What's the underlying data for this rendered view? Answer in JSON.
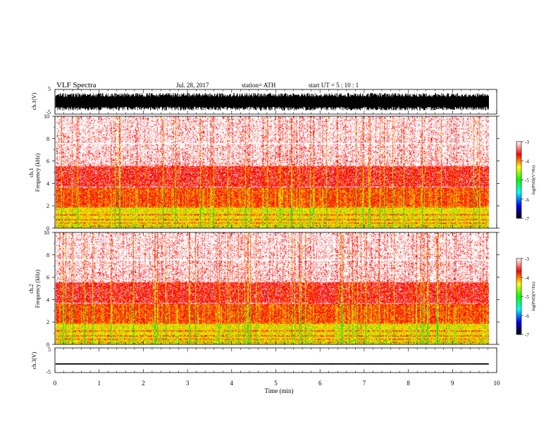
{
  "header": {
    "title": "VLF  Spectra",
    "date": "Jul.  28, 2017",
    "station": "station= ATH",
    "start_ut": "start  UT  =   5  : 10 : 1"
  },
  "chart_data": [
    {
      "id": "ch1-waveform",
      "type": "line",
      "ylabel": "ch.1(V)",
      "yticks": [
        "5",
        "-5"
      ],
      "ylim": [
        -5,
        5
      ],
      "xlim": [
        0,
        10
      ],
      "data_end_min": 9.82,
      "amplitude_range_V": [
        -3.6,
        3.6
      ]
    },
    {
      "id": "ch1-spectrogram",
      "type": "heatmap",
      "ylabel_line1": "ch.1",
      "ylabel_line2": "Frequency  (kHz)",
      "yticks": [
        "0",
        "2",
        "4",
        "6",
        "8",
        "10"
      ],
      "ylim_kHz": [
        0,
        10
      ],
      "xlim_min": [
        0,
        10
      ],
      "data_end_min": 9.82,
      "colorbar": {
        "label": "log(PSD)(V²/Hz)",
        "ticks": [
          "-3",
          "-4",
          "-5",
          "-6",
          "-7"
        ],
        "range": [
          -7,
          -3
        ],
        "colors": [
          "#000000",
          "#0000ff",
          "#00ffff",
          "#00ff00",
          "#ffff00",
          "#ff0000",
          "#ffffff"
        ]
      },
      "bands_kHz": [
        {
          "range": [
            0.0,
            0.5
          ],
          "level": "green-yellow"
        },
        {
          "range": [
            0.5,
            2.0
          ],
          "level": "yellow-green"
        },
        {
          "range": [
            2.0,
            3.7
          ],
          "level": "red-orange"
        },
        {
          "range": [
            3.7,
            5.6
          ],
          "level": "red"
        },
        {
          "range": [
            5.6,
            10.0
          ],
          "level": "red-white"
        }
      ],
      "horizontal_lines_kHz": [
        0.2,
        0.45,
        0.8,
        1.25,
        1.9,
        3.7,
        5.6,
        7.6
      ]
    },
    {
      "id": "ch2-spectrogram",
      "type": "heatmap",
      "ylabel_line1": "ch.2",
      "ylabel_line2": "Frequency  (kHz)",
      "yticks": [
        "0",
        "2",
        "4",
        "6",
        "8",
        "10"
      ],
      "ylim_kHz": [
        0,
        10
      ],
      "xlim_min": [
        0,
        10
      ],
      "data_end_min": 9.82,
      "colorbar": {
        "label": "log(PSD)(V²/Hz)",
        "ticks": [
          "-3",
          "-4",
          "-5",
          "-6",
          "-7"
        ],
        "range": [
          -7,
          -3
        ],
        "colors": [
          "#000000",
          "#0000ff",
          "#00ffff",
          "#00ff00",
          "#ffff00",
          "#ff0000",
          "#ffffff"
        ]
      },
      "bands_kHz": [
        {
          "range": [
            0.0,
            0.5
          ],
          "level": "green-yellow"
        },
        {
          "range": [
            0.5,
            2.0
          ],
          "level": "yellow-green"
        },
        {
          "range": [
            2.0,
            3.7
          ],
          "level": "red-orange"
        },
        {
          "range": [
            3.7,
            5.6
          ],
          "level": "red"
        },
        {
          "range": [
            5.6,
            10.0
          ],
          "level": "red-white"
        }
      ],
      "horizontal_lines_kHz": [
        0.2,
        0.45,
        0.8,
        1.25,
        1.9,
        3.7,
        5.6,
        7.6
      ]
    },
    {
      "id": "ch3-waveform",
      "type": "line",
      "ylabel": "ch.3(V)",
      "yticks": [
        "5",
        "-5"
      ],
      "ylim": [
        -5,
        5
      ],
      "xlim": [
        0,
        10
      ],
      "data_end_min": 9.82,
      "baseline_V": -1.5,
      "amplitude_range_V": [
        -1.8,
        -1.2
      ]
    }
  ],
  "xaxis": {
    "label": "Time  (min)",
    "ticks": [
      "0",
      "1",
      "2",
      "3",
      "4",
      "5",
      "6",
      "7",
      "8",
      "9",
      "10"
    ],
    "range": [
      0,
      10
    ]
  }
}
